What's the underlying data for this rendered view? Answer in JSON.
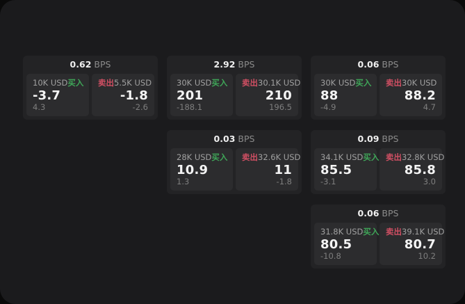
{
  "labels": {
    "buy": "买入",
    "sell": "卖出",
    "unit": "BPS"
  },
  "colors": {
    "buy-green": "#3fa558",
    "sell-red": "#d04f63",
    "screen-bg": "#1b1b1d",
    "card-bg": "#232325",
    "panel-bg": "#2c2c2e"
  },
  "cards": [
    {
      "bps": "0.62",
      "buy": {
        "size": "10K USD",
        "price": "-3.7",
        "sub": "4.3"
      },
      "sell": {
        "size": "5.5K USD",
        "price": "-1.8",
        "sub": "-2.6"
      }
    },
    {
      "bps": "2.92",
      "buy": {
        "size": "30K USD",
        "price": "201",
        "sub": "-188.1"
      },
      "sell": {
        "size": "30.1K USD",
        "price": "210",
        "sub": "196.5"
      }
    },
    {
      "bps": "0.06",
      "buy": {
        "size": "30K USD",
        "price": "88",
        "sub": "-4.9"
      },
      "sell": {
        "size": "30K USD",
        "price": "88.2",
        "sub": "4.7"
      }
    },
    {
      "bps": "0.03",
      "buy": {
        "size": "28K USD",
        "price": "10.9",
        "sub": "1.3"
      },
      "sell": {
        "size": "32.6K USD",
        "price": "11",
        "sub": "-1.8"
      }
    },
    {
      "bps": "0.09",
      "buy": {
        "size": "34.1K USD",
        "price": "85.5",
        "sub": "-3.1"
      },
      "sell": {
        "size": "32.8K USD",
        "price": "85.8",
        "sub": "3.0"
      }
    },
    {
      "bps": "0.06",
      "buy": {
        "size": "31.8K USD",
        "price": "80.5",
        "sub": "-10.8"
      },
      "sell": {
        "size": "39.1K USD",
        "price": "80.7",
        "sub": "10.2"
      }
    }
  ]
}
